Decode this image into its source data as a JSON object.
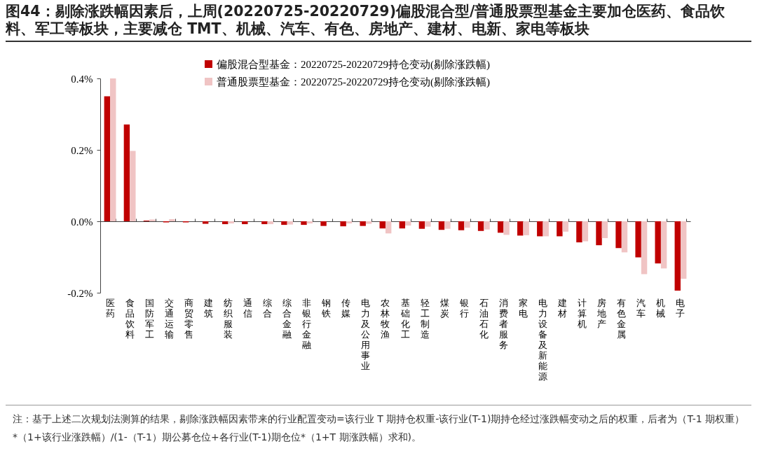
{
  "chart_data": {
    "type": "bar",
    "title": "图44：剔除涨跌幅因素后，上周(20220725-20220729)偏股混合型/普通股票型基金主要加仓医药、食品饮料、军工等板块，主要减仓 TMT、机械、汽车、有色、房地产、建材、电新、家电等板块",
    "categories": [
      "医药",
      "食品饮料",
      "国防军工",
      "交通运输",
      "商贸零售",
      "建筑",
      "纺织服装",
      "通信",
      "综合",
      "综合金融",
      "非银行金融",
      "钢铁",
      "传媒",
      "电力及公用事业",
      "农林牧渔",
      "基础化工",
      "轻工制造",
      "煤炭",
      "银行",
      "石油石化",
      "消费者服务",
      "家电",
      "电力设备及新能源",
      "建材",
      "计算机",
      "房地产",
      "有色金属",
      "汽车",
      "机械",
      "电子"
    ],
    "series": [
      {
        "name": "偏股混合型基金：20220725-20220729持仓变动(剔除涨跌幅)",
        "color": "#c00000",
        "values": [
          0.35,
          0.271,
          0.002,
          -0.003,
          -0.003,
          -0.007,
          -0.008,
          -0.008,
          -0.008,
          -0.01,
          -0.01,
          -0.013,
          -0.014,
          -0.013,
          -0.02,
          -0.02,
          -0.021,
          -0.024,
          -0.025,
          -0.027,
          -0.032,
          -0.04,
          -0.042,
          -0.042,
          -0.059,
          -0.067,
          -0.075,
          -0.101,
          -0.118,
          -0.194
        ]
      },
      {
        "name": "普通股票型基金：20220725-20220729持仓变动(剔除涨跌幅)",
        "color": "#f0c4c4",
        "values": [
          0.4,
          0.197,
          0.005,
          0.006,
          null,
          null,
          -0.006,
          null,
          -0.008,
          -0.009,
          -0.006,
          null,
          -0.006,
          -0.007,
          -0.034,
          -0.012,
          -0.015,
          -0.021,
          -0.018,
          -0.023,
          -0.038,
          -0.039,
          -0.042,
          -0.029,
          -0.056,
          -0.047,
          -0.087,
          -0.148,
          -0.132,
          -0.161
        ]
      }
    ],
    "ylim": [
      -0.2,
      0.4
    ],
    "yticks": [
      {
        "value": -0.2,
        "label": "-0.2%"
      },
      {
        "value": 0,
        "label": "0.0%"
      },
      {
        "value": 0.2,
        "label": "0.2%"
      },
      {
        "value": 0.4,
        "label": "0.4%"
      }
    ],
    "legend": "top",
    "annotations": [
      "注：基于上述二次规划法测算的结果，剔除涨跌幅因素带来的行业配置变动=该行业 T 期持仓权重-该行业(T-1)期持仓经过涨跌幅变动之后的权重，后者为（T-1 期权重）*（1+该行业涨跌幅）/(1-（T-1）期公募仓位+各行业(T-1)期仓位*（1+T 期涨跌幅）求和)。"
    ]
  }
}
